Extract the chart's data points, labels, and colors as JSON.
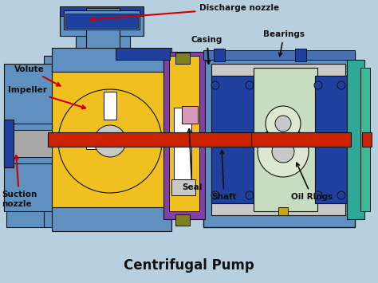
{
  "title": "Centrifugal Pump",
  "background_color": "#b8cfe0",
  "labels": {
    "discharge_nozzle": "Discharge nozzle",
    "volute": "Volute",
    "impeller": "Impeller",
    "suction_nozzle": "Suction\nnozzle",
    "casing": "Casing",
    "bearings": "Bearings",
    "seal": "Seal",
    "shaft": "Shaft",
    "oil_rings": "Oil Rings"
  },
  "colors": {
    "blue_casing": "#6090c0",
    "blue_dark": "#2040a0",
    "yellow": "#f0c020",
    "red_shaft": "#cc2200",
    "purple": "#8040a8",
    "gray": "#a8a8a8",
    "olive": "#808020",
    "light_gray": "#c8c8c8",
    "white": "#ffffff",
    "teal": "#30a898",
    "light_green": "#c8dcc0",
    "pink": "#d898b8",
    "gold": "#c8a800",
    "dark": "#111111",
    "red_arrow": "#cc0000",
    "dark_gray": "#404040",
    "mid_blue": "#4870b0"
  }
}
